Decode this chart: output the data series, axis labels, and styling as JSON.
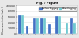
{
  "title": "Fig. / Figure",
  "groups": [
    "Effluent",
    "Prod.A",
    "Prod.B",
    "Prod.C",
    "Effluent2",
    "Prod.D",
    "Decompose",
    "Prod.E"
  ],
  "before_values": [
    68000,
    28000,
    58000,
    58000,
    35000,
    62000,
    0,
    58000
  ],
  "after_values": [
    68000,
    0,
    58000,
    58000,
    0,
    62000,
    38000,
    38000
  ],
  "color_before": "#4472c4",
  "color_after": "#70c8d0",
  "ylabel": "Odour concentration (ou/m³)",
  "ylim": [
    0,
    100000
  ],
  "ytick_labels": [
    "0",
    "20000",
    "40000",
    "60000",
    "80000",
    "100000"
  ],
  "ytick_vals": [
    0,
    20000,
    40000,
    60000,
    80000,
    100000
  ],
  "bg_color": "#e8e8e8",
  "plot_bg": "#ffffff",
  "legend_before": "Before fogging",
  "legend_after": "After fogging"
}
